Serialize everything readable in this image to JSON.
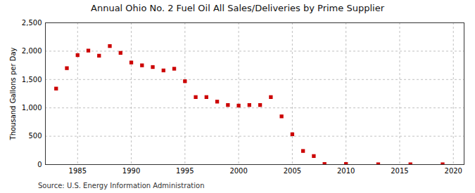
{
  "chart_data": {
    "type": "scatter",
    "title": "Annual Ohio No. 2 Fuel Oil All Sales/Deliveries by Prime Supplier",
    "ylabel": "Thousand Gallons per Day",
    "source": "Source: U.S. Energy Information Administration",
    "x": [
      1983,
      1984,
      1985,
      1986,
      1987,
      1988,
      1989,
      1990,
      1991,
      1992,
      1993,
      1994,
      1995,
      1996,
      1997,
      1998,
      1999,
      2000,
      2001,
      2002,
      2003,
      2004,
      2005,
      2006,
      2007,
      2008,
      2010,
      2013,
      2016,
      2019
    ],
    "values": [
      1340,
      1700,
      1930,
      2010,
      1920,
      2090,
      1970,
      1800,
      1750,
      1720,
      1660,
      1690,
      1470,
      1190,
      1190,
      1110,
      1050,
      1040,
      1050,
      1050,
      1190,
      850,
      535,
      240,
      150,
      10,
      10,
      5,
      5,
      5
    ],
    "color": "#cc0000",
    "marker": "square",
    "xlim": [
      1982,
      2021
    ],
    "xticks": [
      1985,
      1990,
      1995,
      2000,
      2005,
      2010,
      2015,
      2020
    ],
    "ylim": [
      0,
      2500
    ],
    "yticks": [
      0,
      500,
      {
        "value": 1000,
        "label": "1,000"
      },
      {
        "value": 1500,
        "label": "1,500"
      },
      {
        "value": 2000,
        "label": "2,000"
      },
      {
        "value": 2500,
        "label": "2,500"
      }
    ],
    "grid": true
  }
}
